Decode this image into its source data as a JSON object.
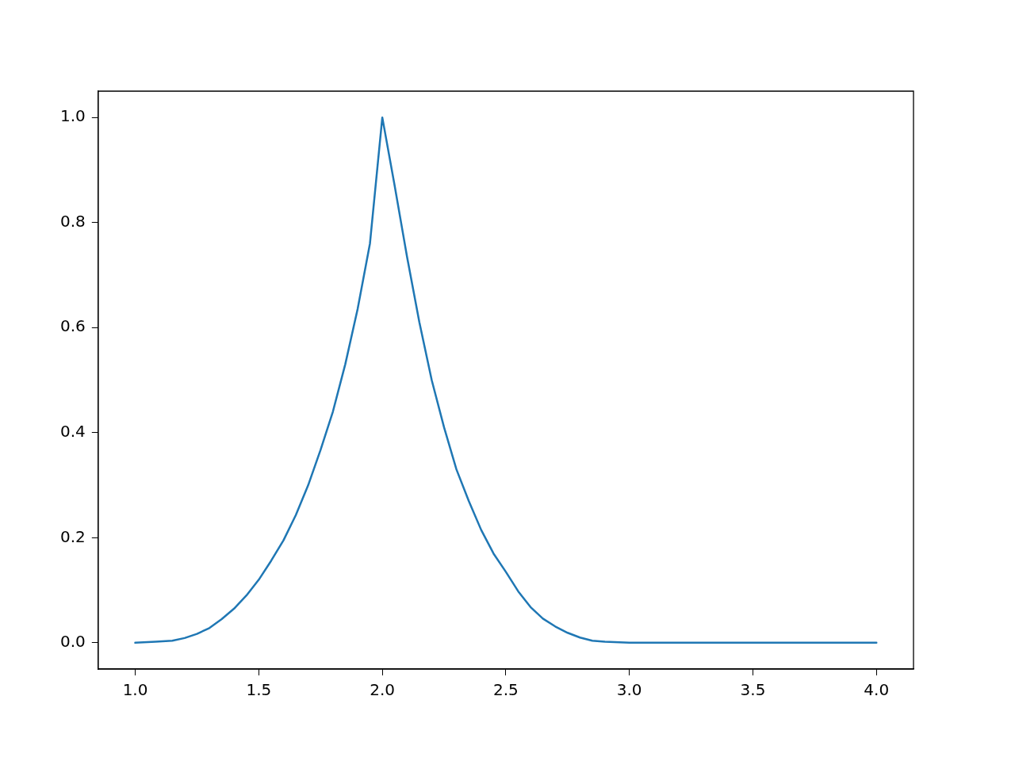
{
  "chart_data": {
    "type": "line",
    "x": [
      1.0,
      1.083,
      1.15,
      1.2,
      1.25,
      1.3,
      1.35,
      1.4,
      1.45,
      1.5,
      1.55,
      1.6,
      1.65,
      1.7,
      1.75,
      1.8,
      1.85,
      1.9,
      1.95,
      2.0,
      2.05,
      2.1,
      2.15,
      2.2,
      2.25,
      2.3,
      2.35,
      2.4,
      2.45,
      2.5,
      2.55,
      2.6,
      2.65,
      2.7,
      2.75,
      2.8,
      2.85,
      2.9,
      3.0,
      3.5,
      4.0
    ],
    "series": [
      {
        "color": "#1f77b4",
        "values": [
          0,
          0.002,
          0.004,
          0.009,
          0.017,
          0.028,
          0.045,
          0.065,
          0.09,
          0.12,
          0.156,
          0.195,
          0.243,
          0.3,
          0.367,
          0.44,
          0.53,
          0.635,
          0.76,
          1.0,
          0.87,
          0.735,
          0.61,
          0.5,
          0.41,
          0.33,
          0.27,
          0.215,
          0.17,
          0.135,
          0.098,
          0.068,
          0.046,
          0.031,
          0.019,
          0.01,
          0.004,
          0.002,
          0,
          0,
          0
        ]
      }
    ],
    "xlim": [
      0.85,
      4.15
    ],
    "ylim": [
      -0.05,
      1.05
    ],
    "xticks": [
      {
        "value": 1,
        "label": "1.0"
      },
      {
        "value": 1.5,
        "label": "1.5"
      },
      {
        "value": 2,
        "label": "2.0"
      },
      {
        "value": 2.5,
        "label": "2.5"
      },
      {
        "value": 3,
        "label": "3.0"
      },
      {
        "value": 3.5,
        "label": "3.5"
      },
      {
        "value": 4,
        "label": "4.0"
      }
    ],
    "yticks": [
      {
        "value": 0,
        "label": "0.0"
      },
      {
        "value": 0.2,
        "label": "0.2"
      },
      {
        "value": 0.4,
        "label": "0.4"
      },
      {
        "value": 0.6,
        "label": "0.6"
      },
      {
        "value": 0.8,
        "label": "0.8"
      },
      {
        "value": 1,
        "label": "1.0"
      }
    ],
    "grid": false,
    "legend": false,
    "marker": "none",
    "line_style": "solid"
  }
}
